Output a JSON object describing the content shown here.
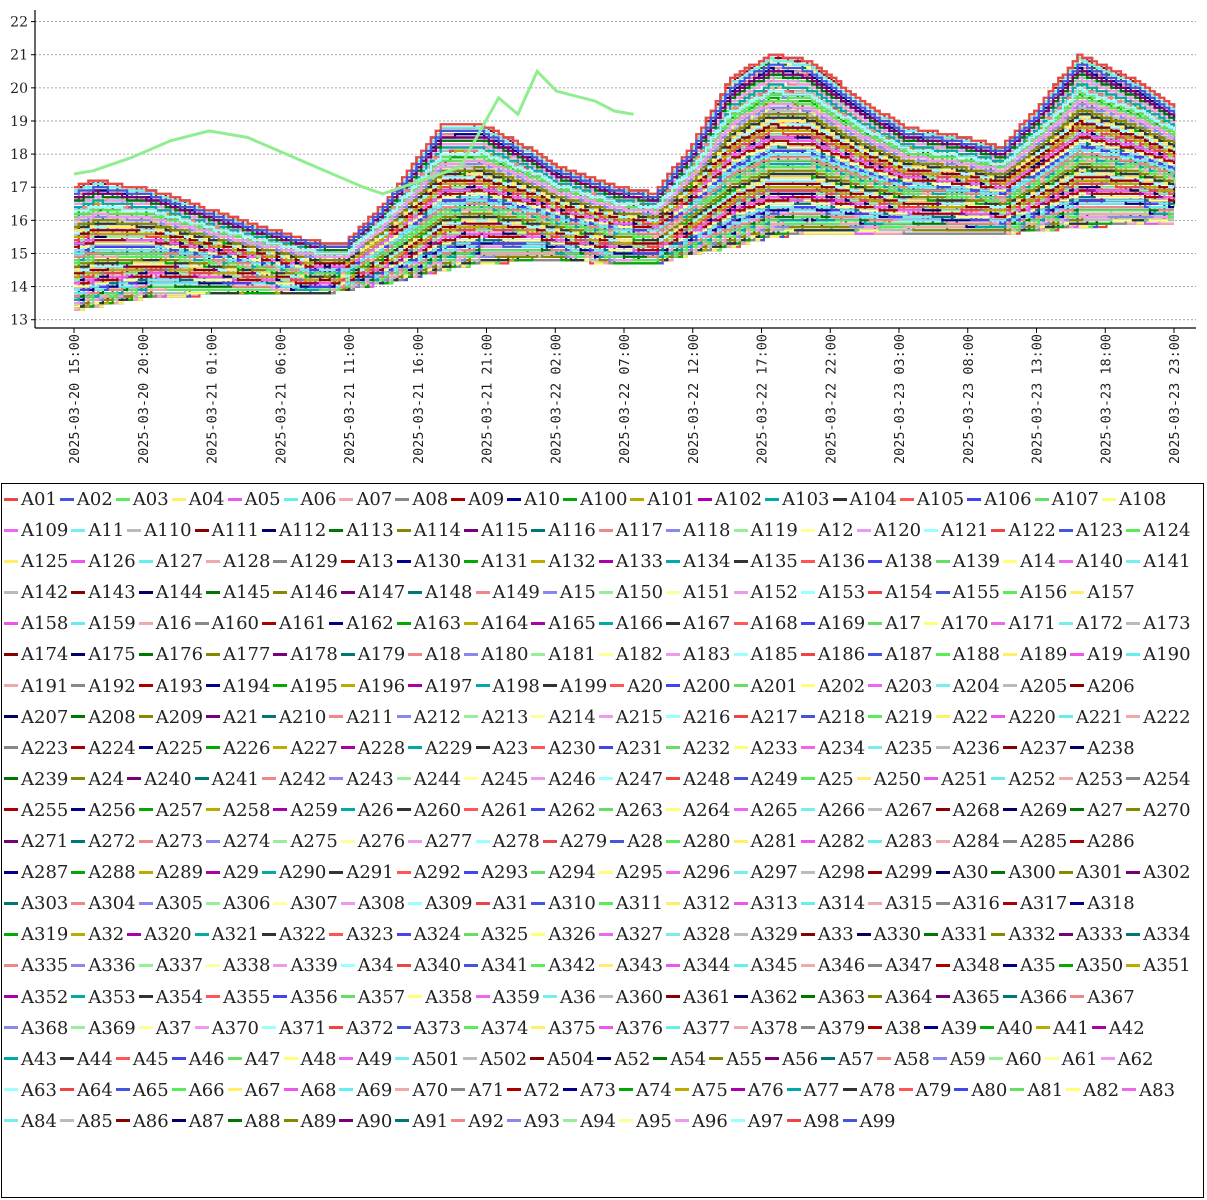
{
  "chart_data": {
    "type": "line",
    "title": "",
    "xlabel": "",
    "ylabel": "",
    "ylim": [
      12.75,
      22.35
    ],
    "yticks": [
      13,
      14,
      15,
      16,
      17,
      18,
      19,
      20,
      21,
      22
    ],
    "xlim": [
      0,
      57
    ],
    "xtick_labels": [
      "2025-03-20  15:00",
      "2025-03-20  20:00",
      "2025-03-21  01:00",
      "2025-03-21  06:00",
      "2025-03-21  11:00",
      "2025-03-21  16:00",
      "2025-03-21  21:00",
      "2025-03-22  02:00",
      "2025-03-22  07:00",
      "2025-03-22  12:00",
      "2025-03-22  17:00",
      "2025-03-22  22:00",
      "2025-03-23  03:00",
      "2025-03-23  08:00",
      "2025-03-23  13:00",
      "2025-03-23  18:00",
      "2025-03-23  23:00"
    ],
    "grid": "horizontal dashed",
    "legend_position": "bottom",
    "envelope_note": "x values are hours after 2025-03-20 14:00",
    "envelopes": {
      "x": [
        0,
        1,
        4,
        9,
        12,
        13,
        14,
        16,
        19,
        21,
        24,
        25,
        28,
        30,
        32,
        34,
        36,
        38,
        41,
        43,
        46,
        48,
        50,
        52,
        55,
        57
      ],
      "upper": [
        17.0,
        17.2,
        16.9,
        15.9,
        15.4,
        15.3,
        15.3,
        16.5,
        18.9,
        18.9,
        18.0,
        17.6,
        17.0,
        16.8,
        18.3,
        20.3,
        21.0,
        20.8,
        19.5,
        18.8,
        18.5,
        18.2,
        19.5,
        21.0,
        20.2,
        19.4
      ],
      "lower": [
        13.3,
        13.4,
        13.7,
        13.8,
        13.8,
        13.8,
        13.9,
        14.1,
        14.5,
        14.7,
        14.8,
        14.8,
        14.7,
        14.7,
        15.0,
        15.2,
        15.5,
        15.6,
        15.6,
        15.6,
        15.6,
        15.6,
        15.7,
        15.8,
        15.9,
        15.9
      ]
    },
    "highlight_series": {
      "name": "A119",
      "color": "#90ee90",
      "x": [
        0,
        1,
        3,
        5,
        7,
        9,
        11,
        13,
        15,
        16,
        20,
        22,
        23,
        24,
        25,
        27,
        28,
        29
      ],
      "y": [
        17.4,
        17.5,
        17.9,
        18.4,
        18.7,
        18.5,
        18.0,
        17.5,
        17.0,
        16.8,
        17.6,
        19.7,
        19.2,
        20.5,
        19.9,
        19.6,
        19.3,
        19.2
      ]
    },
    "series_names": [
      "A01",
      "A02",
      "A03",
      "A04",
      "A05",
      "A06",
      "A07",
      "A08",
      "A09",
      "A10",
      "A100",
      "A101",
      "A102",
      "A103",
      "A104",
      "A105",
      "A106",
      "A107",
      "A108",
      "A109",
      "A11",
      "A110",
      "A111",
      "A112",
      "A113",
      "A114",
      "A115",
      "A116",
      "A117",
      "A118",
      "A119",
      "A12",
      "A120",
      "A121",
      "A122",
      "A123",
      "A124",
      "A125",
      "A126",
      "A127",
      "A128",
      "A129",
      "A13",
      "A130",
      "A131",
      "A132",
      "A133",
      "A134",
      "A135",
      "A136",
      "A138",
      "A139",
      "A14",
      "A140",
      "A141",
      "A142",
      "A143",
      "A144",
      "A145",
      "A146",
      "A147",
      "A148",
      "A149",
      "A15",
      "A150",
      "A151",
      "A152",
      "A153",
      "A154",
      "A155",
      "A156",
      "A157",
      "A158",
      "A159",
      "A16",
      "A160",
      "A161",
      "A162",
      "A163",
      "A164",
      "A165",
      "A166",
      "A167",
      "A168",
      "A169",
      "A17",
      "A170",
      "A171",
      "A172",
      "A173",
      "A174",
      "A175",
      "A176",
      "A177",
      "A178",
      "A179",
      "A18",
      "A180",
      "A181",
      "A182",
      "A183",
      "A185",
      "A186",
      "A187",
      "A188",
      "A189",
      "A19",
      "A190",
      "A191",
      "A192",
      "A193",
      "A194",
      "A195",
      "A196",
      "A197",
      "A198",
      "A199",
      "A20",
      "A200",
      "A201",
      "A202",
      "A203",
      "A204",
      "A205",
      "A206",
      "A207",
      "A208",
      "A209",
      "A21",
      "A210",
      "A211",
      "A212",
      "A213",
      "A214",
      "A215",
      "A216",
      "A217",
      "A218",
      "A219",
      "A22",
      "A220",
      "A221",
      "A222",
      "A223",
      "A224",
      "A225",
      "A226",
      "A227",
      "A228",
      "A229",
      "A23",
      "A230",
      "A231",
      "A232",
      "A233",
      "A234",
      "A235",
      "A236",
      "A237",
      "A238",
      "A239",
      "A24",
      "A240",
      "A241",
      "A242",
      "A243",
      "A244",
      "A245",
      "A246",
      "A247",
      "A248",
      "A249",
      "A25",
      "A250",
      "A251",
      "A252",
      "A253",
      "A254",
      "A255",
      "A256",
      "A257",
      "A258",
      "A259",
      "A26",
      "A260",
      "A261",
      "A262",
      "A263",
      "A264",
      "A265",
      "A266",
      "A267",
      "A268",
      "A269",
      "A27",
      "A270",
      "A271",
      "A272",
      "A273",
      "A274",
      "A275",
      "A276",
      "A277",
      "A278",
      "A279",
      "A28",
      "A280",
      "A281",
      "A282",
      "A283",
      "A284",
      "A285",
      "A286",
      "A287",
      "A288",
      "A289",
      "A29",
      "A290",
      "A291",
      "A292",
      "A293",
      "A294",
      "A295",
      "A296",
      "A297",
      "A298",
      "A299",
      "A30",
      "A300",
      "A301",
      "A302",
      "A303",
      "A304",
      "A305",
      "A306",
      "A307",
      "A308",
      "A309",
      "A31",
      "A310",
      "A311",
      "A312",
      "A313",
      "A314",
      "A315",
      "A316",
      "A317",
      "A318",
      "A319",
      "A32",
      "A320",
      "A321",
      "A322",
      "A323",
      "A324",
      "A325",
      "A326",
      "A327",
      "A328",
      "A329",
      "A33",
      "A330",
      "A331",
      "A332",
      "A333",
      "A334",
      "A335",
      "A336",
      "A337",
      "A338",
      "A339",
      "A34",
      "A340",
      "A341",
      "A342",
      "A343",
      "A344",
      "A345",
      "A346",
      "A347",
      "A348",
      "A35",
      "A350",
      "A351",
      "A352",
      "A353",
      "A354",
      "A355",
      "A356",
      "A357",
      "A358",
      "A359",
      "A36",
      "A360",
      "A361",
      "A362",
      "A363",
      "A364",
      "A365",
      "A366",
      "A367",
      "A368",
      "A369",
      "A37",
      "A370",
      "A371",
      "A372",
      "A373",
      "A374",
      "A375",
      "A376",
      "A377",
      "A378",
      "A379",
      "A38",
      "A39",
      "A40",
      "A41",
      "A42",
      "A43",
      "A44",
      "A45",
      "A46",
      "A47",
      "A48",
      "A49",
      "A501",
      "A502",
      "A504",
      "A52",
      "A54",
      "A55",
      "A56",
      "A57",
      "A58",
      "A59",
      "A60",
      "A61",
      "A62",
      "A63",
      "A64",
      "A65",
      "A66",
      "A67",
      "A68",
      "A69",
      "A70",
      "A71",
      "A72",
      "A73",
      "A74",
      "A75",
      "A76",
      "A77",
      "A78",
      "A79",
      "A80",
      "A81",
      "A82",
      "A83",
      "A84",
      "A85",
      "A86",
      "A87",
      "A88",
      "A89",
      "A90",
      "A91",
      "A92",
      "A93",
      "A94",
      "A95",
      "A96",
      "A97",
      "A98",
      "A99"
    ],
    "palette": [
      "#ee4444",
      "#4455dd",
      "#55ee55",
      "#ffee66",
      "#ee55ee",
      "#66eeee",
      "#eeaaaa",
      "#888888",
      "#aa0000",
      "#000088",
      "#00aa00",
      "#bbaa00",
      "#aa00aa",
      "#00aaaa",
      "#333333",
      "#ff5555",
      "#4444ee",
      "#66dd66",
      "#ffff77",
      "#ee66ee",
      "#77eeee",
      "#bbbbbb",
      "#880000",
      "#000066",
      "#007700",
      "#888800",
      "#770077",
      "#007777",
      "#ee8888",
      "#8888ee",
      "#99ee99",
      "#ffff99",
      "#ee99ee",
      "#99ffff"
    ]
  }
}
